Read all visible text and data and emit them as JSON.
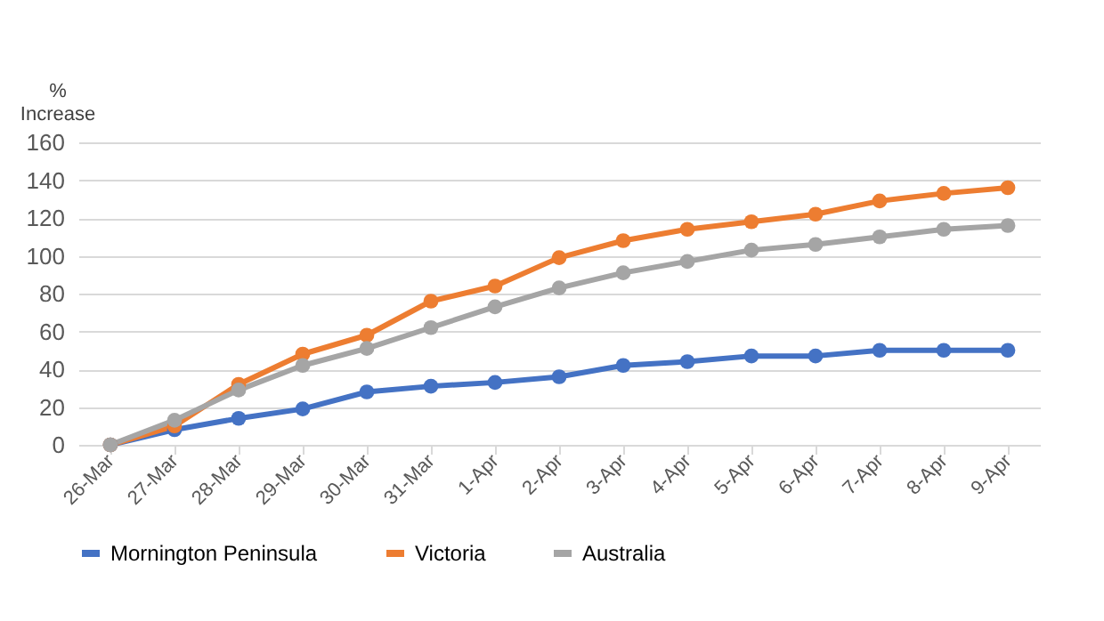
{
  "chart_data": {
    "type": "line",
    "ylabel": "%\nIncrease",
    "categories": [
      "26-Mar",
      "27-Mar",
      "28-Mar",
      "29-Mar",
      "30-Mar",
      "31-Mar",
      "1-Apr",
      "2-Apr",
      "3-Apr",
      "4-Apr",
      "5-Apr",
      "6-Apr",
      "7-Apr",
      "8-Apr",
      "9-Apr"
    ],
    "series": [
      {
        "name": "Mornington Peninsula",
        "color": "#4472c4",
        "values": [
          0,
          8,
          14,
          19,
          28,
          31,
          33,
          36,
          42,
          44,
          47,
          47,
          50,
          50,
          50
        ]
      },
      {
        "name": "Victoria",
        "color": "#ed7d31",
        "values": [
          0,
          10,
          32,
          48,
          58,
          76,
          84,
          99,
          108,
          114,
          118,
          122,
          129,
          133,
          136
        ]
      },
      {
        "name": "Australia",
        "color": "#a5a5a5",
        "values": [
          0,
          13,
          29,
          42,
          51,
          62,
          73,
          83,
          91,
          97,
          103,
          106,
          110,
          114,
          116
        ]
      }
    ],
    "ylim": [
      0,
      160
    ],
    "yticks": [
      0,
      20,
      40,
      60,
      80,
      100,
      120,
      140,
      160
    ],
    "grid": "y",
    "legend": "bottom",
    "marker": "circle",
    "line_style": "solid"
  }
}
